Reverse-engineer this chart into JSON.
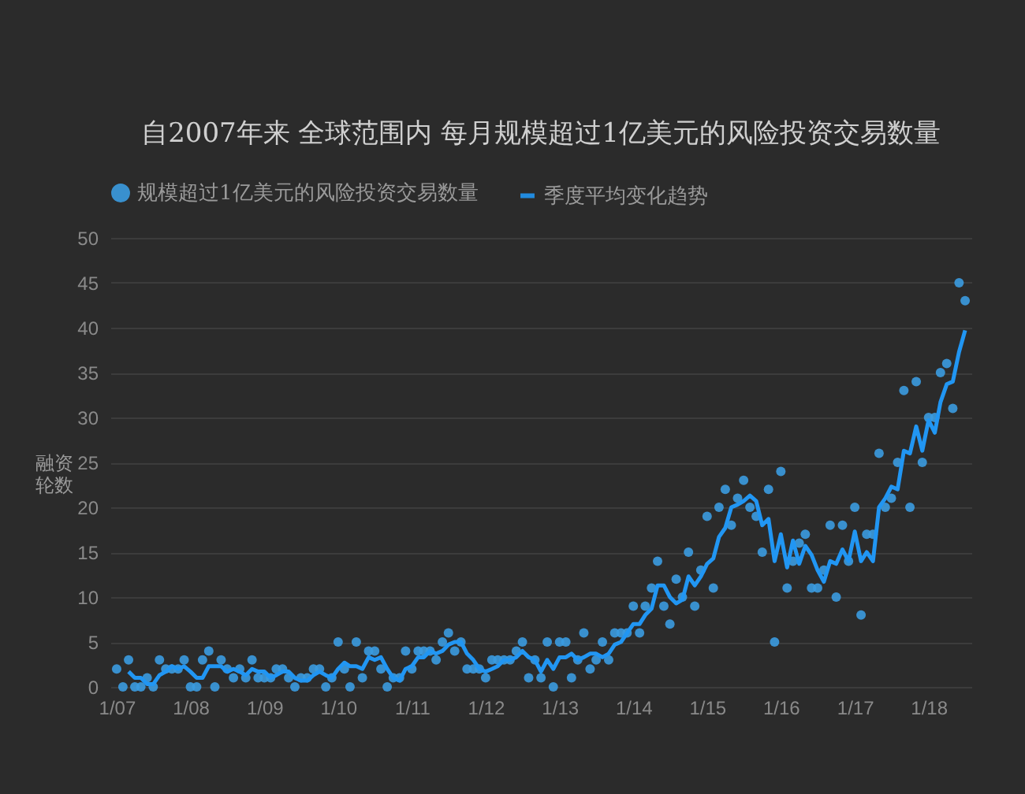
{
  "chart_data": {
    "type": "scatter",
    "title": "自2007年来 全球范围内 每月规模超过1亿美元的风险投资交易数量",
    "ylabel": "融资轮数",
    "x": [
      "2007-01",
      "2007-02",
      "2007-03",
      "2007-04",
      "2007-05",
      "2007-06",
      "2007-07",
      "2007-08",
      "2007-09",
      "2007-10",
      "2007-11",
      "2007-12",
      "2008-01",
      "2008-02",
      "2008-03",
      "2008-04",
      "2008-05",
      "2008-06",
      "2008-07",
      "2008-08",
      "2008-09",
      "2008-10",
      "2008-11",
      "2008-12",
      "2009-01",
      "2009-02",
      "2009-03",
      "2009-04",
      "2009-05",
      "2009-06",
      "2009-07",
      "2009-08",
      "2009-09",
      "2009-10",
      "2009-11",
      "2009-12",
      "2010-01",
      "2010-02",
      "2010-03",
      "2010-04",
      "2010-05",
      "2010-06",
      "2010-07",
      "2010-08",
      "2010-09",
      "2010-10",
      "2010-11",
      "2010-12",
      "2011-01",
      "2011-02",
      "2011-03",
      "2011-04",
      "2011-05",
      "2011-06",
      "2011-07",
      "2011-08",
      "2011-09",
      "2011-10",
      "2011-11",
      "2011-12",
      "2012-01",
      "2012-02",
      "2012-03",
      "2012-04",
      "2012-05",
      "2012-06",
      "2012-07",
      "2012-08",
      "2012-09",
      "2012-10",
      "2012-11",
      "2012-12",
      "2013-01",
      "2013-02",
      "2013-03",
      "2013-04",
      "2013-05",
      "2013-06",
      "2013-07",
      "2013-08",
      "2013-09",
      "2013-10",
      "2013-11",
      "2013-12",
      "2014-01",
      "2014-02",
      "2014-03",
      "2014-04",
      "2014-05",
      "2014-06",
      "2014-07",
      "2014-08",
      "2014-09",
      "2014-10",
      "2014-11",
      "2014-12",
      "2015-01",
      "2015-02",
      "2015-03",
      "2015-04",
      "2015-05",
      "2015-06",
      "2015-07",
      "2015-08",
      "2015-09",
      "2015-10",
      "2015-11",
      "2015-12",
      "2016-01",
      "2016-02",
      "2016-03",
      "2016-04",
      "2016-05",
      "2016-06",
      "2016-07",
      "2016-08",
      "2016-09",
      "2016-10",
      "2016-11",
      "2016-12",
      "2017-01",
      "2017-02",
      "2017-03",
      "2017-04",
      "2017-05",
      "2017-06",
      "2017-07",
      "2017-08",
      "2017-09",
      "2017-10",
      "2017-11",
      "2017-12",
      "2018-01",
      "2018-02",
      "2018-03",
      "2018-04",
      "2018-05",
      "2018-06",
      "2018-07"
    ],
    "series": [
      {
        "name": "规模超过1亿美元的风险投资交易数量",
        "color": "#3b9be0",
        "values": [
          2,
          0,
          3,
          0,
          0,
          1,
          0,
          3,
          2,
          2,
          2,
          3,
          0,
          0,
          3,
          4,
          0,
          3,
          2,
          1,
          2,
          1,
          3,
          1,
          1,
          1,
          2,
          2,
          1,
          0,
          1,
          1,
          2,
          2,
          0,
          1,
          5,
          2,
          0,
          5,
          1,
          4,
          4,
          2,
          0,
          1,
          1,
          4,
          2,
          4,
          4,
          4,
          3,
          5,
          6,
          4,
          5,
          2,
          2,
          2,
          1,
          3,
          3,
          3,
          3,
          4,
          5,
          1,
          3,
          1,
          5,
          0,
          5,
          5,
          1,
          3,
          6,
          2,
          3,
          5,
          3,
          6,
          6,
          6,
          9,
          6,
          9,
          11,
          14,
          9,
          7,
          12,
          10,
          15,
          9,
          13,
          19,
          11,
          20,
          22,
          18,
          21,
          23,
          20,
          19,
          15,
          22,
          5,
          24,
          11,
          14,
          16,
          17,
          11,
          11,
          13,
          18,
          10,
          18,
          14,
          20,
          8,
          17,
          17,
          26,
          20,
          21,
          25,
          33,
          20,
          34,
          25,
          30,
          30,
          35,
          36,
          31,
          45,
          43
        ]
      },
      {
        "name": "季度平均变化趋势",
        "type": "line",
        "marker": "none",
        "color": "#2196f3",
        "x": [
          "2007-03",
          "2007-04",
          "2007-05",
          "2007-06",
          "2007-07",
          "2007-08",
          "2007-09",
          "2007-10",
          "2007-11",
          "2007-12",
          "2008-01",
          "2008-02",
          "2008-03",
          "2008-04",
          "2008-05",
          "2008-06",
          "2008-07",
          "2008-08",
          "2008-09",
          "2008-10",
          "2008-11",
          "2008-12",
          "2009-01",
          "2009-02",
          "2009-03",
          "2009-04",
          "2009-05",
          "2009-06",
          "2009-07",
          "2009-08",
          "2009-09",
          "2009-10",
          "2009-11",
          "2009-12",
          "2010-01",
          "2010-02",
          "2010-03",
          "2010-04",
          "2010-05",
          "2010-06",
          "2010-07",
          "2010-08",
          "2010-09",
          "2010-10",
          "2010-11",
          "2010-12",
          "2011-01",
          "2011-02",
          "2011-03",
          "2011-04",
          "2011-05",
          "2011-06",
          "2011-07",
          "2011-08",
          "2011-09",
          "2011-10",
          "2011-11",
          "2011-12",
          "2012-01",
          "2012-02",
          "2012-03",
          "2012-04",
          "2012-05",
          "2012-06",
          "2012-07",
          "2012-08",
          "2012-09",
          "2012-10",
          "2012-11",
          "2012-12",
          "2013-01",
          "2013-02",
          "2013-03",
          "2013-04",
          "2013-05",
          "2013-06",
          "2013-07",
          "2013-08",
          "2013-09",
          "2013-10",
          "2013-11",
          "2013-12",
          "2014-01",
          "2014-02",
          "2014-03",
          "2014-04",
          "2014-05",
          "2014-06",
          "2014-07",
          "2014-08",
          "2014-09",
          "2014-10",
          "2014-11",
          "2014-12",
          "2015-01",
          "2015-02",
          "2015-03",
          "2015-04",
          "2015-05",
          "2015-06",
          "2015-07",
          "2015-08",
          "2015-09",
          "2015-10",
          "2015-11",
          "2015-12",
          "2016-01",
          "2016-02",
          "2016-03",
          "2016-04",
          "2016-05",
          "2016-06",
          "2016-07",
          "2016-08",
          "2016-09",
          "2016-10",
          "2016-11",
          "2016-12",
          "2017-01",
          "2017-02",
          "2017-03",
          "2017-04",
          "2017-05",
          "2017-06",
          "2017-07",
          "2017-08",
          "2017-09",
          "2017-10",
          "2017-11",
          "2017-12",
          "2018-01",
          "2018-02",
          "2018-03",
          "2018-04",
          "2018-05",
          "2018-06",
          "2018-07"
        ],
        "values": [
          1.7,
          1.0,
          1.0,
          0.3,
          0.3,
          1.3,
          1.7,
          2.3,
          2.0,
          2.3,
          1.7,
          1.0,
          1.0,
          2.3,
          2.3,
          2.3,
          1.7,
          2.0,
          1.7,
          1.3,
          2.0,
          1.7,
          1.7,
          1.0,
          1.3,
          1.7,
          1.7,
          1.0,
          0.7,
          0.7,
          1.3,
          1.7,
          1.3,
          1.0,
          2.0,
          2.7,
          2.3,
          2.3,
          2.0,
          3.3,
          3.0,
          3.3,
          2.0,
          1.0,
          0.7,
          2.0,
          2.3,
          3.3,
          3.3,
          4.0,
          3.7,
          4.0,
          4.7,
          5.0,
          5.0,
          3.7,
          3.0,
          2.0,
          1.7,
          2.0,
          2.3,
          3.0,
          3.0,
          3.3,
          4.0,
          3.3,
          3.0,
          1.7,
          3.0,
          2.0,
          3.3,
          3.3,
          3.7,
          3.0,
          3.3,
          3.7,
          3.7,
          3.3,
          3.7,
          4.7,
          5.0,
          6.0,
          7.0,
          7.0,
          8.0,
          8.7,
          11.3,
          11.3,
          10.0,
          9.3,
          9.7,
          12.3,
          11.3,
          12.3,
          13.7,
          14.3,
          16.7,
          17.7,
          20.0,
          20.3,
          20.7,
          21.3,
          20.7,
          18.0,
          18.7,
          14.0,
          17.0,
          13.3,
          16.3,
          13.7,
          15.7,
          14.7,
          13.0,
          11.7,
          14.0,
          13.7,
          15.3,
          14.0,
          17.3,
          14.0,
          15.0,
          14.0,
          20.0,
          21.0,
          22.3,
          22.0,
          26.3,
          26.0,
          29.0,
          26.3,
          29.7,
          28.3,
          31.7,
          33.7,
          34.0,
          37.3,
          39.7
        ]
      }
    ],
    "xlim": [
      "2006-12",
      "2018-08"
    ],
    "xticks": [
      {
        "value": "2007-01",
        "label": "1/07"
      },
      {
        "value": "2008-01",
        "label": "1/08"
      },
      {
        "value": "2009-01",
        "label": "1/09"
      },
      {
        "value": "2010-01",
        "label": "1/10"
      },
      {
        "value": "2011-01",
        "label": "1/11"
      },
      {
        "value": "2012-01",
        "label": "1/12"
      },
      {
        "value": "2013-01",
        "label": "1/13"
      },
      {
        "value": "2014-01",
        "label": "1/14"
      },
      {
        "value": "2015-01",
        "label": "1/15"
      },
      {
        "value": "2016-01",
        "label": "1/16"
      },
      {
        "value": "2017-01",
        "label": "1/17"
      },
      {
        "value": "2018-01",
        "label": "1/18"
      }
    ],
    "ylim": [
      0,
      50
    ],
    "yticks": [
      0,
      5,
      10,
      15,
      20,
      25,
      30,
      35,
      40,
      45,
      50
    ],
    "grid": "y",
    "legend": "top left",
    "marker": "circle",
    "line_style": "solid"
  }
}
